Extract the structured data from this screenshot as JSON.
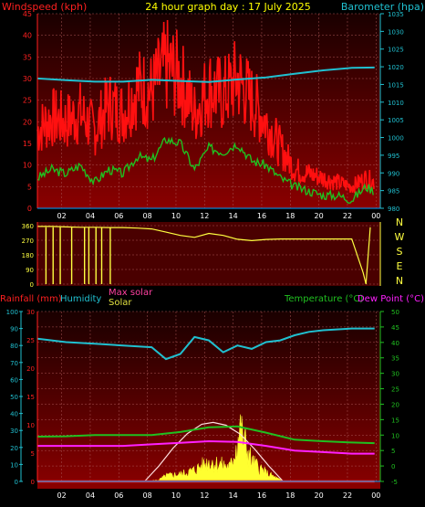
{
  "title": "24 hour graph day : 17 July 2025",
  "colors": {
    "wind_label": "#ff2020",
    "title": "#ffff00",
    "baro": "#20c0d0",
    "rain_label": "#ff2020",
    "humidity": "#20c0d0",
    "maxsolar": "#ff40a0",
    "solar": "#ffff40",
    "temp": "#20c020",
    "dew": "#ff20ff",
    "axis_left": "#ff2020",
    "axis_right": "#20c0d0",
    "grid": "#aa5555",
    "time": "#00a0ff"
  },
  "chart_data": [
    {
      "type": "line",
      "id": "wind-baro",
      "title": "24 hour graph day : 17 July 2025",
      "ylabel_left": "Windspeed (kph)",
      "ylabel_right": "Barometer (hpa)",
      "ylim_left": [
        0,
        45
      ],
      "ylim_right": [
        980,
        1035
      ],
      "yticks_left": [
        "0",
        "5",
        "10",
        "15",
        "20",
        "25",
        "30",
        "35",
        "40",
        "45"
      ],
      "yticks_right": [
        "980",
        "985",
        "990",
        "995",
        "1000",
        "1005",
        "1010",
        "1015",
        "1020",
        "1025",
        "1030",
        "1035"
      ],
      "xticks": [
        "02",
        "04",
        "06",
        "08",
        "10",
        "12",
        "14",
        "16",
        "18",
        "20",
        "22",
        "00"
      ],
      "series": [
        {
          "name": "Barometer",
          "axis": "right",
          "hours": [
            0,
            2,
            4,
            6,
            8,
            10,
            12,
            14,
            16,
            18,
            20,
            22,
            23.6
          ],
          "values": [
            1016.7,
            1016.2,
            1015.8,
            1015.8,
            1016.3,
            1016.0,
            1015.7,
            1016.4,
            1017.0,
            1018.0,
            1019.0,
            1019.7,
            1019.8
          ]
        },
        {
          "name": "Wind avg",
          "axis": "left",
          "hours": [
            0,
            1,
            2,
            3,
            4,
            5,
            6,
            7,
            8,
            9,
            10,
            11,
            12,
            13,
            14,
            15,
            16,
            17,
            18,
            19,
            20,
            21,
            22,
            23,
            23.6
          ],
          "values": [
            7,
            9,
            8,
            10,
            6,
            9,
            8,
            12,
            11,
            16,
            15,
            9,
            14,
            13,
            15,
            11,
            10,
            7,
            5,
            4,
            3,
            3,
            2,
            5,
            4
          ]
        },
        {
          "name": "Wind gust",
          "axis": "left",
          "hours": [
            0,
            1,
            2,
            3,
            4,
            5,
            6,
            7,
            8,
            9,
            10,
            11,
            12,
            13,
            14,
            15,
            16,
            17,
            18,
            19,
            20,
            21,
            22,
            23,
            23.6
          ],
          "values": [
            18,
            21,
            20,
            22,
            18,
            24,
            22,
            28,
            27,
            33,
            30,
            22,
            28,
            26,
            30,
            25,
            20,
            14,
            9,
            8,
            7,
            6,
            5,
            7,
            6
          ]
        }
      ]
    },
    {
      "type": "line",
      "id": "wind-direction",
      "ylim": [
        0,
        360
      ],
      "yticks": [
        "0",
        "90",
        "180",
        "270",
        "360"
      ],
      "compass": [
        "N",
        "W",
        "S",
        "E",
        "N"
      ],
      "series": [
        {
          "name": "Direction",
          "hours": [
            0,
            1,
            2,
            3,
            4,
            5,
            6,
            7,
            8,
            9,
            10,
            11,
            12,
            13,
            14,
            15,
            16,
            17,
            18,
            19,
            20,
            21,
            22,
            22.8,
            23.0,
            23.3
          ],
          "values": [
            355,
            355,
            352,
            350,
            350,
            348,
            348,
            345,
            340,
            320,
            300,
            288,
            312,
            300,
            276,
            268,
            275,
            278,
            278,
            278,
            278,
            278,
            278,
            70,
            0,
            350
          ]
        }
      ]
    },
    {
      "type": "line",
      "id": "rain-humidity-temp",
      "legend": [
        "Rainfall (mm)",
        "Humidity",
        "Max solar",
        "Solar",
        "Temperature (°C)",
        "Dew Point (°C)"
      ],
      "ylim_rain": [
        0,
        30
      ],
      "ylim_humidity": [
        0,
        100
      ],
      "ylim_temp": [
        -5,
        50
      ],
      "yticks_rain": [
        "0",
        "5",
        "10",
        "15",
        "20",
        "25",
        "30"
      ],
      "yticks_humidity": [
        "0",
        "10",
        "20",
        "30",
        "40",
        "50",
        "60",
        "70",
        "80",
        "90",
        "100"
      ],
      "yticks_temp": [
        "-5",
        "0",
        "5",
        "10",
        "15",
        "20",
        "25",
        "30",
        "35",
        "40",
        "45",
        "50"
      ],
      "xticks": [
        "02",
        "04",
        "06",
        "08",
        "10",
        "12",
        "14",
        "16",
        "18",
        "20",
        "22",
        "00"
      ],
      "series": [
        {
          "name": "Humidity",
          "axis": "humidity",
          "hours": [
            0,
            2,
            4,
            6,
            8,
            9,
            10,
            11,
            12,
            13,
            14,
            15,
            16,
            17,
            18,
            19,
            20,
            22,
            23.6
          ],
          "values": [
            84,
            82,
            81,
            80,
            79,
            72,
            75,
            85,
            83,
            76,
            80,
            78,
            82,
            83,
            86,
            88,
            89,
            90,
            90
          ]
        },
        {
          "name": "Temperature",
          "axis": "temp",
          "hours": [
            0,
            2,
            4,
            6,
            8,
            10,
            12,
            14,
            16,
            18,
            20,
            22,
            23.6
          ],
          "values": [
            9.5,
            9.6,
            10.0,
            10.0,
            10.0,
            11.0,
            12.5,
            12.8,
            10.8,
            8.5,
            8.0,
            7.6,
            7.4
          ]
        },
        {
          "name": "Dew Point",
          "axis": "temp",
          "hours": [
            0,
            2,
            4,
            6,
            8,
            10,
            12,
            14,
            16,
            18,
            20,
            22,
            23.6
          ],
          "values": [
            6.5,
            6.5,
            6.5,
            6.5,
            7.0,
            7.5,
            8.0,
            7.8,
            6.5,
            5.0,
            4.5,
            4.0,
            4.0
          ]
        },
        {
          "name": "Max solar",
          "axis": "temp",
          "hours": [
            7.5,
            8.5,
            9.5,
            10.5,
            11.5,
            12.3,
            13.2,
            14.2,
            15.2,
            16.2,
            17.2
          ],
          "values": [
            -5,
            0,
            5.8,
            10.5,
            13.5,
            14.1,
            13.2,
            10.3,
            5.5,
            0,
            -5
          ]
        },
        {
          "name": "Solar",
          "axis": "temp",
          "hours": [
            7.5,
            8.5,
            9,
            10,
            11,
            12,
            12.8,
            13.5,
            14.2,
            15,
            16,
            17.2
          ],
          "values": [
            -5,
            -4.5,
            -3,
            -2.5,
            -1,
            2,
            1,
            0,
            13,
            2,
            -2,
            -5
          ]
        },
        {
          "name": "Rainfall",
          "axis": "rain",
          "hours": [
            0,
            23.6
          ],
          "values": [
            0,
            0
          ]
        }
      ]
    }
  ]
}
